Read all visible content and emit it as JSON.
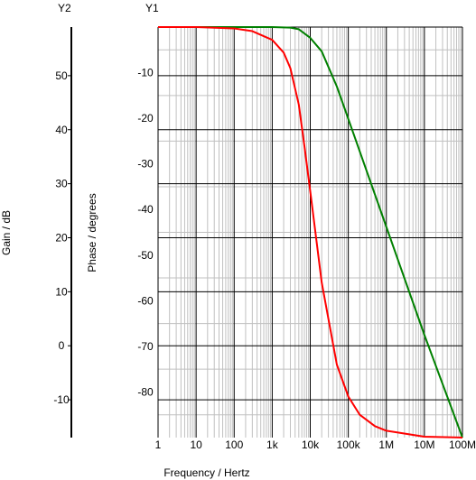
{
  "chart_data": {
    "type": "line",
    "title": "",
    "xlabel": "Frequency / Hertz",
    "x_scale": "log",
    "x_ticks": [
      1,
      10,
      100,
      1000,
      10000,
      100000,
      1000000,
      10000000,
      100000000
    ],
    "x_tick_labels": [
      "1",
      "10",
      "100",
      "1k",
      "10k",
      "100k",
      "1M",
      "10M",
      "100M"
    ],
    "xlim": [
      1,
      100000000
    ],
    "axes": {
      "y2": {
        "title": "Y2",
        "label": "Gain / dB",
        "range": [
          -17,
          59
        ],
        "ticks": [
          -10,
          0,
          10,
          20,
          30,
          40,
          50
        ],
        "tick_labels": [
          "-10",
          "0",
          "10",
          "20",
          "30",
          "40",
          "50"
        ]
      },
      "y1": {
        "title": "Y1",
        "label": "Phase / degrees",
        "range": [
          -90,
          0
        ],
        "ticks": [
          -80,
          -70,
          -60,
          -50,
          -40,
          -30,
          -20,
          -10
        ],
        "tick_labels": [
          "-80",
          "-70",
          "-60",
          "-50",
          "-40",
          "-30",
          "-20",
          "-10"
        ]
      }
    },
    "grid": true,
    "legend": "none",
    "series": [
      {
        "color": "#008000",
        "axis": "y2",
        "x": [
          1,
          10,
          100,
          1000,
          3000,
          5000,
          10000,
          20000,
          50000,
          100000,
          1000000,
          10000000,
          100000000
        ],
        "y": [
          59,
          59,
          59,
          59,
          58.9,
          58.6,
          57,
          54.5,
          48,
          42,
          22,
          2,
          -17
        ]
      },
      {
        "color": "#ff0000",
        "axis": "y1",
        "x": [
          1,
          10,
          100,
          300,
          1000,
          2000,
          3000,
          5000,
          7000,
          10000,
          20000,
          50000,
          100000,
          200000,
          500000,
          1000000,
          10000000,
          100000000
        ],
        "y": [
          0,
          0,
          -0.3,
          -0.9,
          -2.8,
          -5.6,
          -9,
          -17,
          -26,
          -36,
          -56,
          -74,
          -81,
          -85,
          -87.5,
          -88.5,
          -89.8,
          -90
        ]
      }
    ]
  }
}
